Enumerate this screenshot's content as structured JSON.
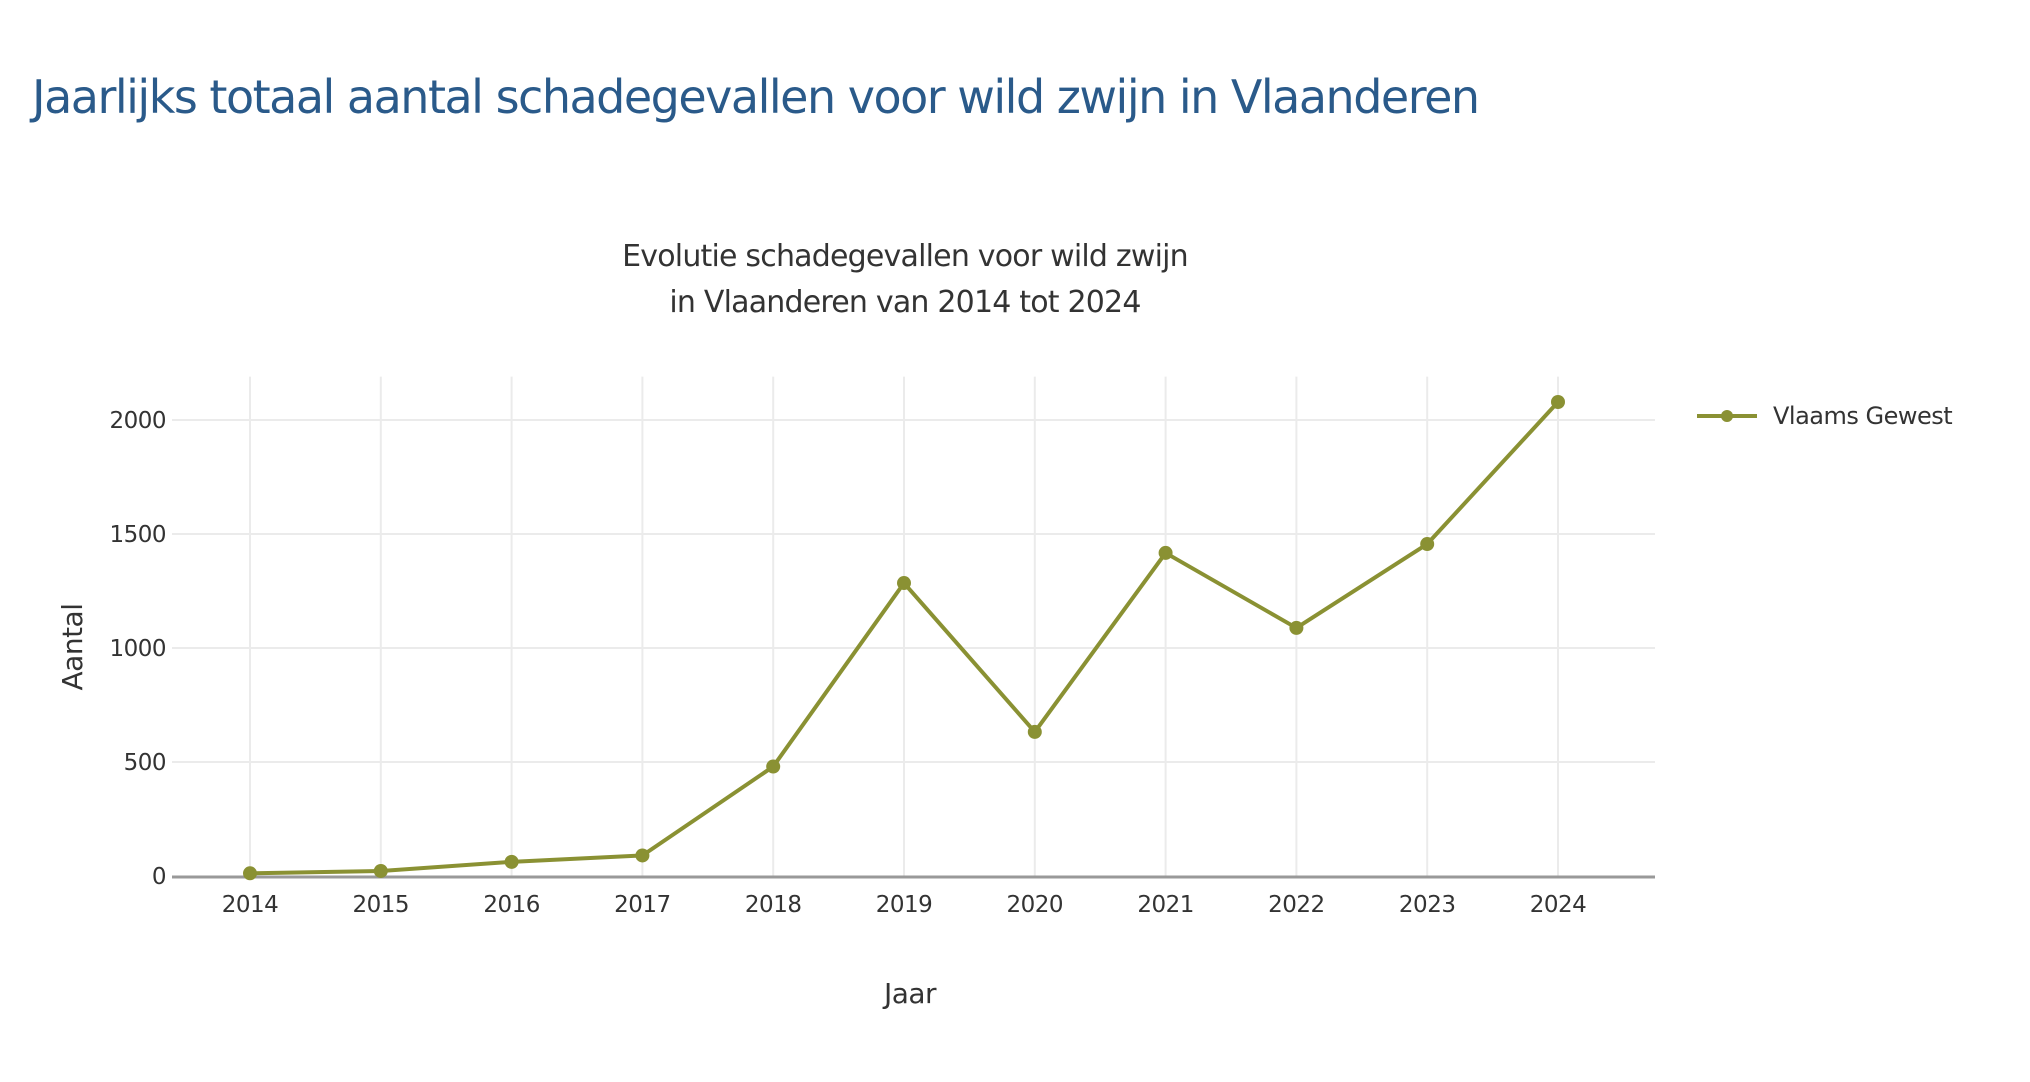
{
  "page": {
    "title": "Jaarlijks totaal aantal schadegevallen voor wild zwijn in Vlaanderen"
  },
  "chart_data": {
    "type": "line",
    "title": "Evolutie schadegevallen voor wild zwijn in Vlaanderen van 2014 tot 2024",
    "title_lines": [
      "Evolutie schadegevallen voor wild zwijn",
      "in Vlaanderen van 2014 tot 2024"
    ],
    "xlabel": "Jaar",
    "ylabel": "Aantal",
    "categories": [
      "2014",
      "2015",
      "2016",
      "2017",
      "2018",
      "2019",
      "2020",
      "2021",
      "2022",
      "2023",
      "2024"
    ],
    "series": [
      {
        "name": "Vlaams Gewest",
        "color": "#8a9133",
        "values": [
          12,
          22,
          62,
          90,
          480,
          1285,
          632,
          1417,
          1088,
          1456,
          2079
        ]
      }
    ],
    "yticks": [
      0,
      500,
      1000,
      1500,
      2000
    ],
    "ylim": [
      0,
      2190
    ],
    "grid": true,
    "legend_position": "right-top"
  }
}
